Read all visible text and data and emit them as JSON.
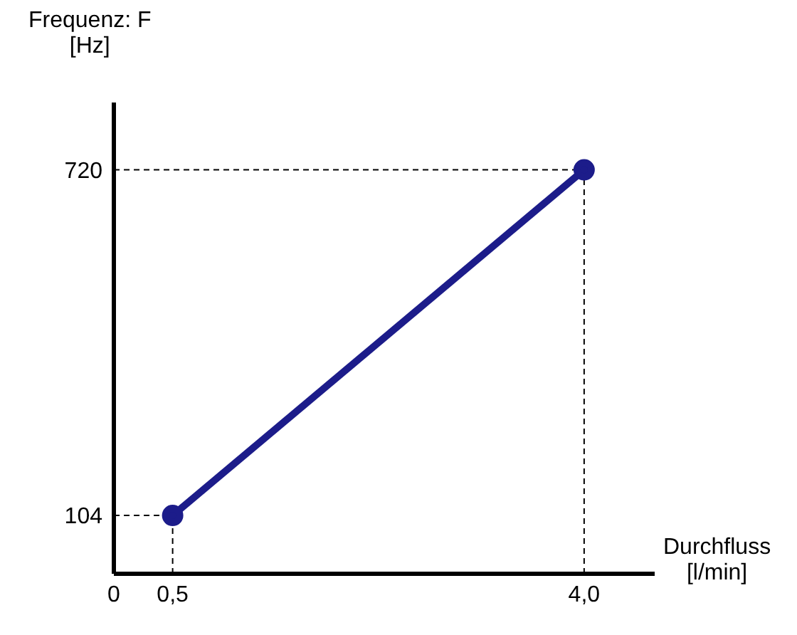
{
  "chart_data": {
    "type": "line",
    "xlabel": "Durchfluss\n[l/min]",
    "ylabel": "Frequenz: F\n[Hz]",
    "x": [
      0.5,
      4.0
    ],
    "series": [
      {
        "color": "#1c1c8a",
        "values": [
          104,
          720
        ]
      }
    ],
    "xlim": [
      0,
      4.6
    ],
    "xticks": [
      {
        "value": 0,
        "label": "0"
      },
      {
        "value": 0.5,
        "label": "0,5"
      },
      {
        "value": 4.0,
        "label": "4,0"
      }
    ],
    "ylim": [
      0,
      840
    ],
    "yticks": [
      104,
      720
    ],
    "ref_lines": [
      {
        "axis": "x",
        "value": 0.5,
        "line_style": "dashed",
        "color": "#000000"
      },
      {
        "axis": "x",
        "value": 4.0,
        "line_style": "dashed",
        "color": "#000000"
      },
      {
        "axis": "y",
        "value": 104,
        "line_style": "dashed",
        "color": "#000000"
      },
      {
        "axis": "y",
        "value": 720,
        "line_style": "dashed",
        "color": "#000000"
      }
    ],
    "marker": "circle",
    "line_style": "solid",
    "grid": false,
    "legend": false
  }
}
